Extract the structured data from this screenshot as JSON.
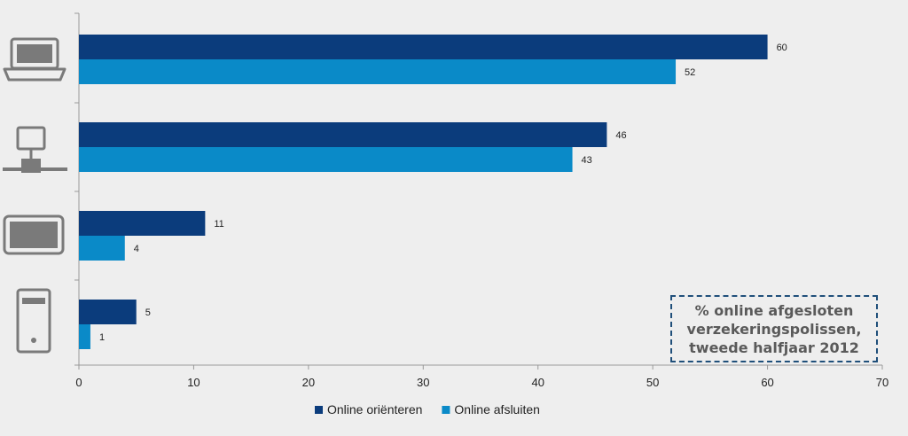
{
  "chart_data": {
    "type": "bar",
    "orientation": "horizontal",
    "categories": [
      "laptop-icon",
      "desktop-network-icon",
      "tablet-icon",
      "tower-pc-icon"
    ],
    "series": [
      {
        "name": "Online oriënteren",
        "values": [
          60,
          46,
          11,
          5
        ]
      },
      {
        "name": "Online afsluiten",
        "values": [
          52,
          43,
          4,
          1
        ]
      }
    ],
    "xlim": [
      0,
      70
    ],
    "xticks": [
      "0",
      "10",
      "20",
      "30",
      "40",
      "50",
      "60",
      "70"
    ],
    "xlabel": "",
    "ylabel": "",
    "legend_placement": "bottom",
    "grid": false,
    "annotation": "% online afgesloten verzekeringspolissen, tweede halfjaar 2012",
    "colors": {
      "series_0": "#0b3c7c",
      "series_1": "#0a8ac8",
      "icon": "#7a7a7a",
      "axis": "#999999"
    }
  }
}
